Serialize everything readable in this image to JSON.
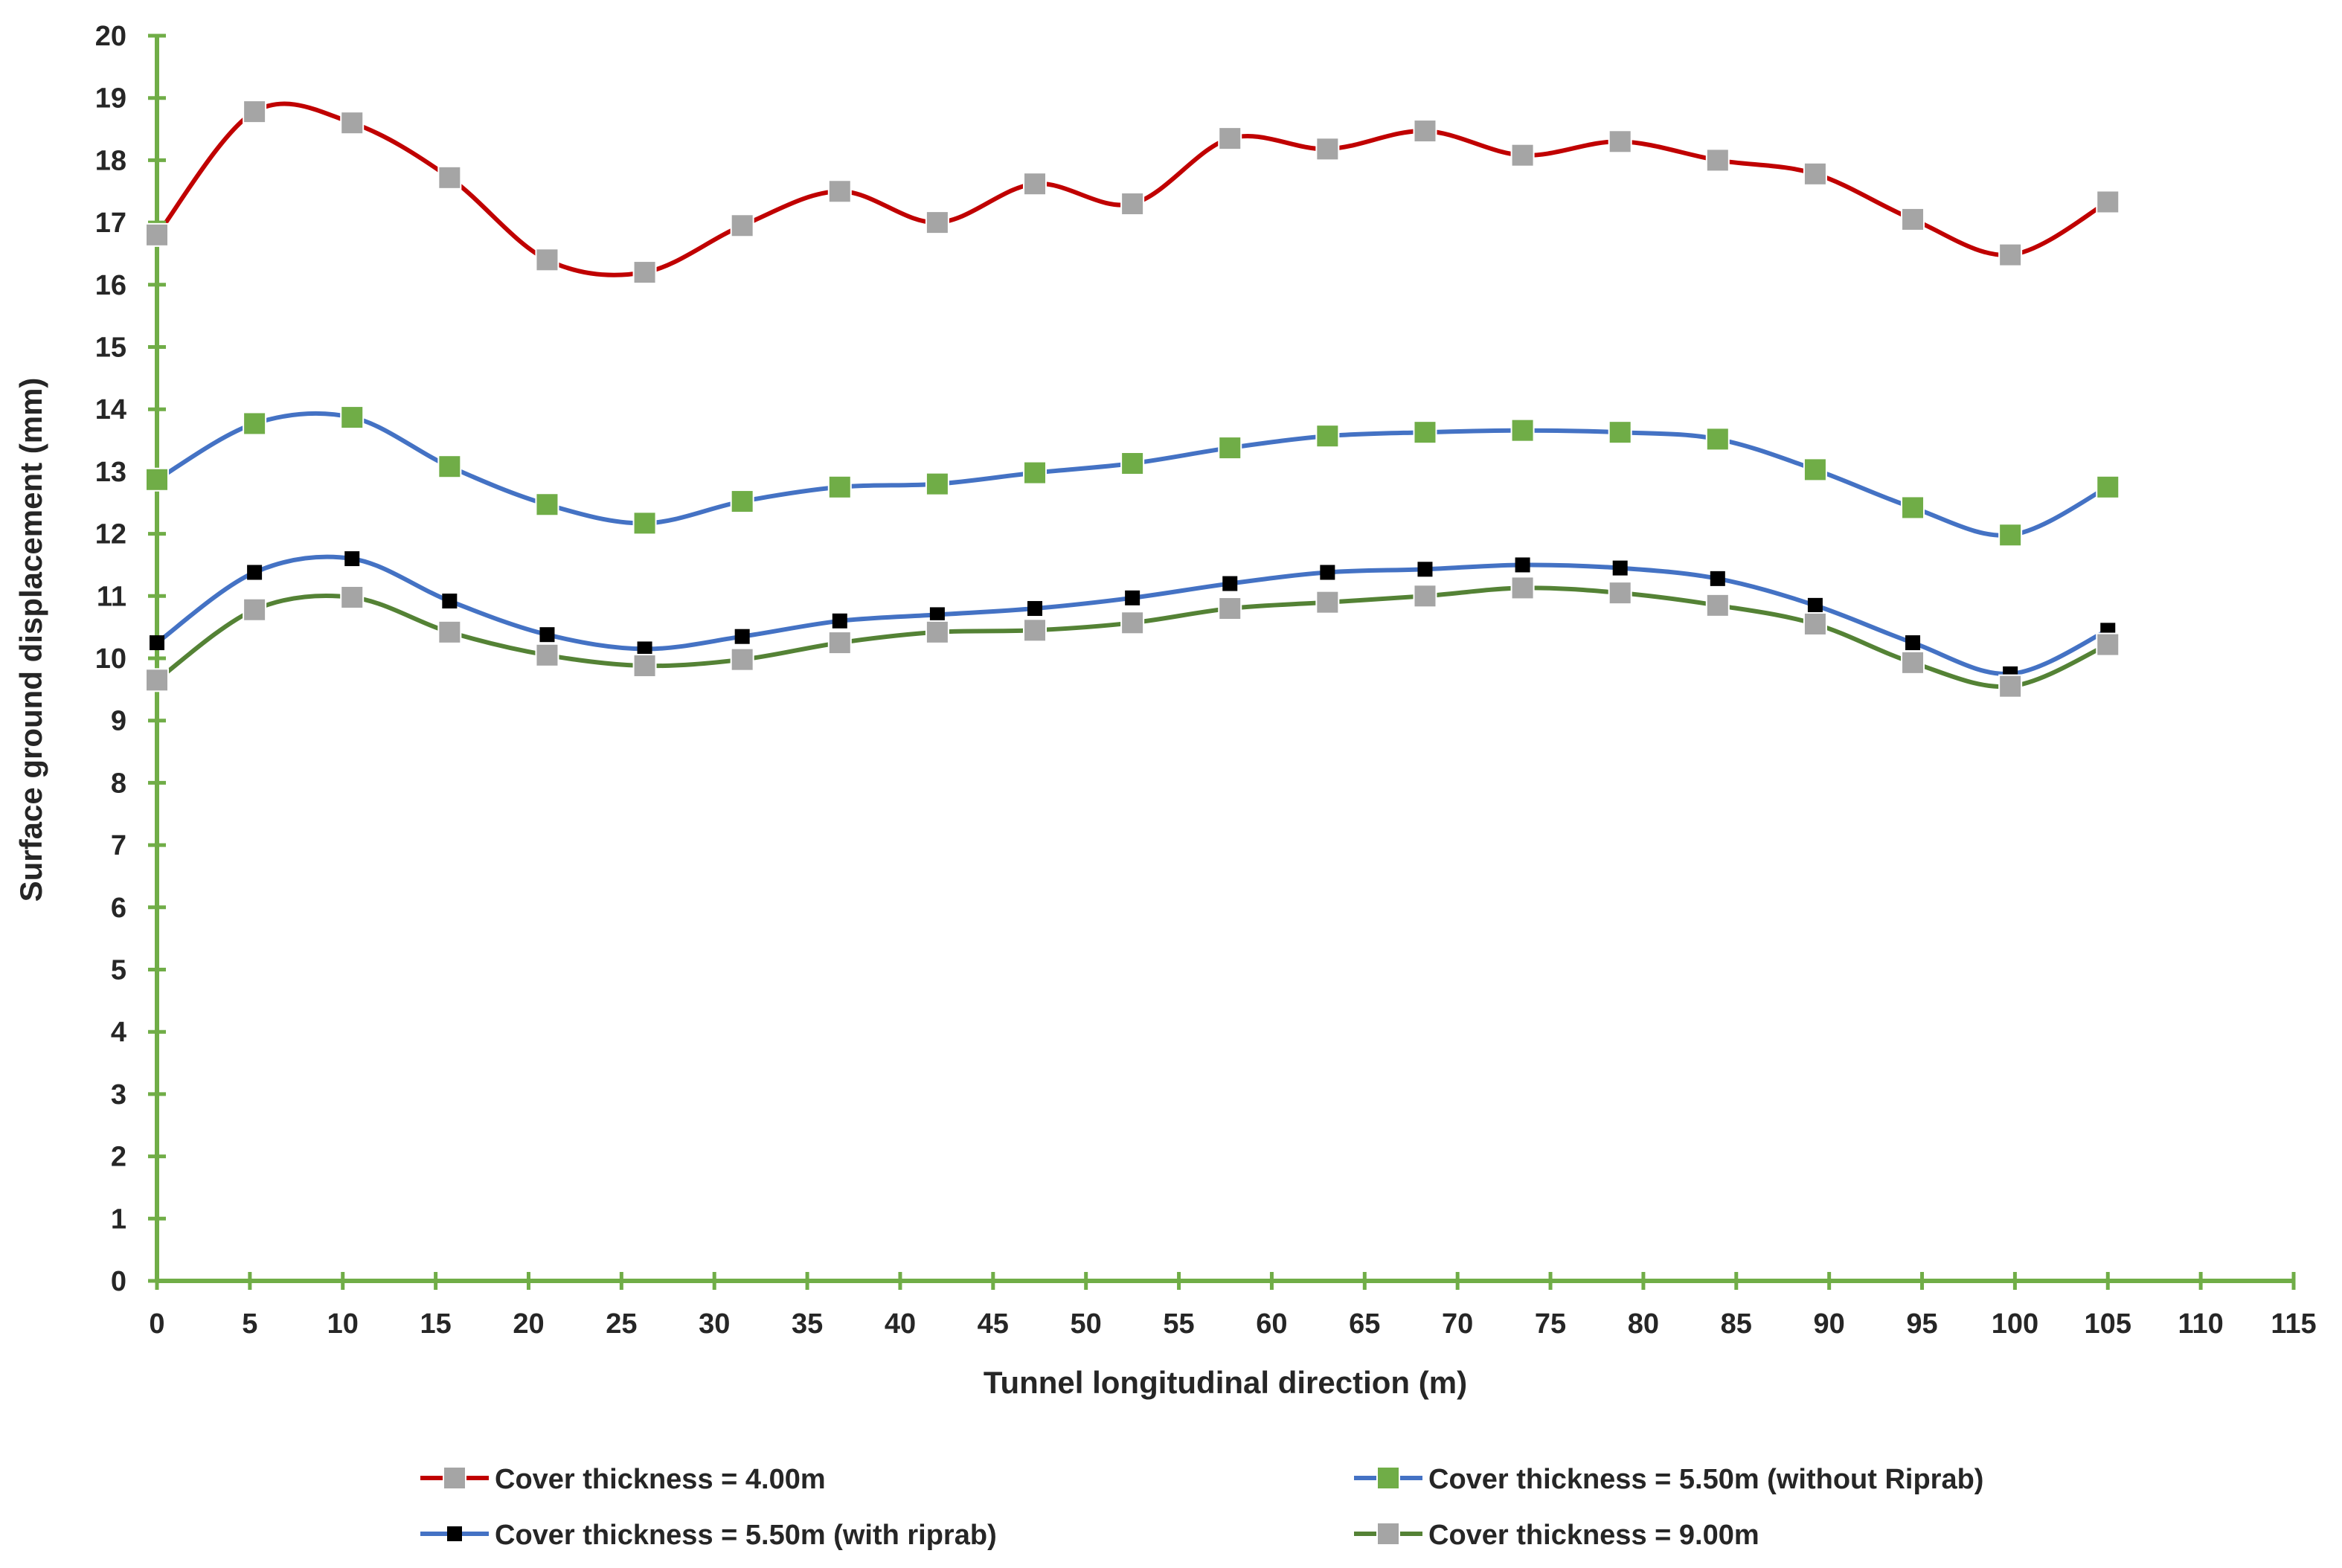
{
  "chart_data": {
    "type": "line",
    "title": "",
    "xlabel": "Tunnel longitudinal direction (m)",
    "ylabel": "Surface ground displacement (mm)",
    "xlim": [
      0,
      115
    ],
    "ylim": [
      0,
      20
    ],
    "xticks": [
      0,
      5,
      10,
      15,
      20,
      25,
      30,
      35,
      40,
      45,
      50,
      55,
      60,
      65,
      70,
      75,
      80,
      85,
      90,
      95,
      100,
      105,
      110,
      115
    ],
    "yticks": [
      0,
      1,
      2,
      3,
      4,
      5,
      6,
      7,
      8,
      9,
      10,
      11,
      12,
      13,
      14,
      15,
      16,
      17,
      18,
      19,
      20
    ],
    "axis_color": "#70AD47",
    "grid": false,
    "legend_position": "bottom",
    "x": [
      0,
      5.25,
      10.5,
      15.75,
      21,
      26.25,
      31.5,
      36.75,
      42,
      47.25,
      52.5,
      57.75,
      63,
      68.25,
      73.5,
      78.75,
      84,
      89.25,
      94.5,
      99.75,
      105
    ],
    "series": [
      {
        "name": "Cover thickness = 4.00m",
        "line_color": "#C00000",
        "marker_color": "#A5A5A5",
        "marker": "square-large",
        "values": [
          16.8,
          18.78,
          18.6,
          17.72,
          16.4,
          16.2,
          16.95,
          17.5,
          17.0,
          17.62,
          17.3,
          18.35,
          18.18,
          18.47,
          18.08,
          18.3,
          18.0,
          17.78,
          17.05,
          16.48,
          17.33
        ]
      },
      {
        "name": "Cover thickness = 5.50m (without Riprab)",
        "line_color": "#4472C4",
        "marker_color": "#70AD47",
        "marker": "square-large",
        "values": [
          12.87,
          13.77,
          13.87,
          13.08,
          12.47,
          12.17,
          12.52,
          12.75,
          12.8,
          12.98,
          13.13,
          13.38,
          13.57,
          13.63,
          13.66,
          13.63,
          13.52,
          13.03,
          12.42,
          11.98,
          12.75
        ]
      },
      {
        "name": "Cover thickness = 5.50m (with riprab)",
        "line_color": "#4472C4",
        "marker_color": "#000000",
        "marker": "square-small",
        "values": [
          10.25,
          11.38,
          11.6,
          10.92,
          10.38,
          10.15,
          10.35,
          10.6,
          10.7,
          10.8,
          10.97,
          11.2,
          11.38,
          11.43,
          11.5,
          11.45,
          11.28,
          10.85,
          10.25,
          9.75,
          10.45
        ]
      },
      {
        "name": "Cover thickness = 9.00m",
        "line_color": "#548235",
        "marker_color": "#A5A5A5",
        "marker": "square-large",
        "values": [
          9.65,
          10.78,
          10.98,
          10.42,
          10.05,
          9.88,
          9.98,
          10.25,
          10.42,
          10.45,
          10.57,
          10.8,
          10.9,
          11.0,
          11.13,
          11.05,
          10.85,
          10.55,
          9.93,
          9.55,
          10.22
        ]
      }
    ]
  }
}
